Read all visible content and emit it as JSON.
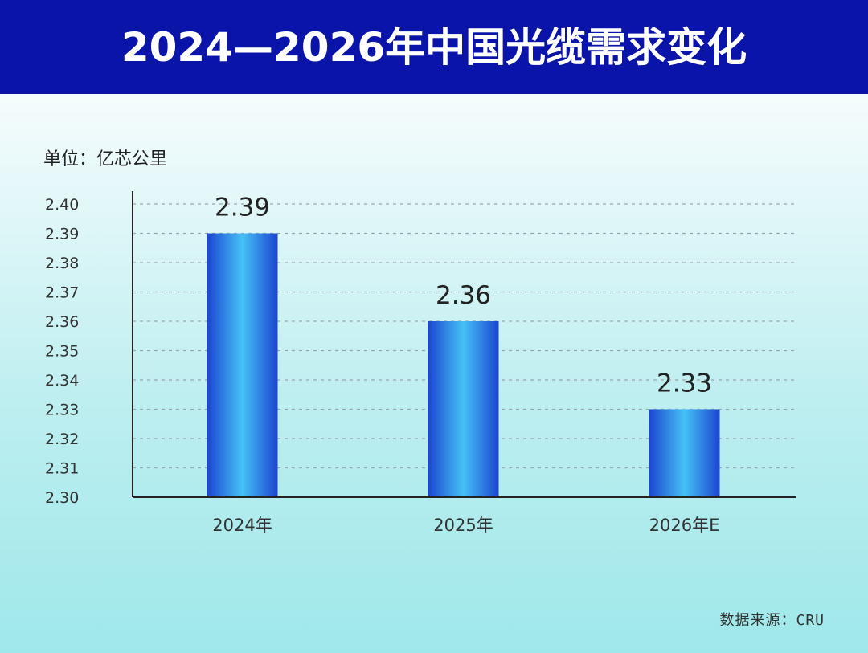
{
  "header": {
    "title": "2024—2026年中国光缆需求变化"
  },
  "unit_label": "单位：亿芯公里",
  "source_label": "数据来源：CRU",
  "colors": {
    "header_bg": "#0a14a8",
    "bar_dark": "#1a4fd8",
    "bar_light": "#3fb6f5",
    "grid": "#9aa6ad",
    "axis": "#222222"
  },
  "chart_data": {
    "type": "bar",
    "title": "2024—2026年中国光缆需求变化",
    "ylabel": "单位：亿芯公里",
    "xlabel": "",
    "categories": [
      "2024年",
      "2025年",
      "2026年E"
    ],
    "values": [
      2.39,
      2.36,
      2.33
    ],
    "value_labels": [
      "2.39",
      "2.36",
      "2.33"
    ],
    "ylim": [
      2.3,
      2.4
    ],
    "yticks": [
      "2.30",
      "2.31",
      "2.32",
      "2.33",
      "2.34",
      "2.35",
      "2.36",
      "2.37",
      "2.38",
      "2.39",
      "2.40"
    ],
    "grid": true,
    "legend": "none"
  }
}
